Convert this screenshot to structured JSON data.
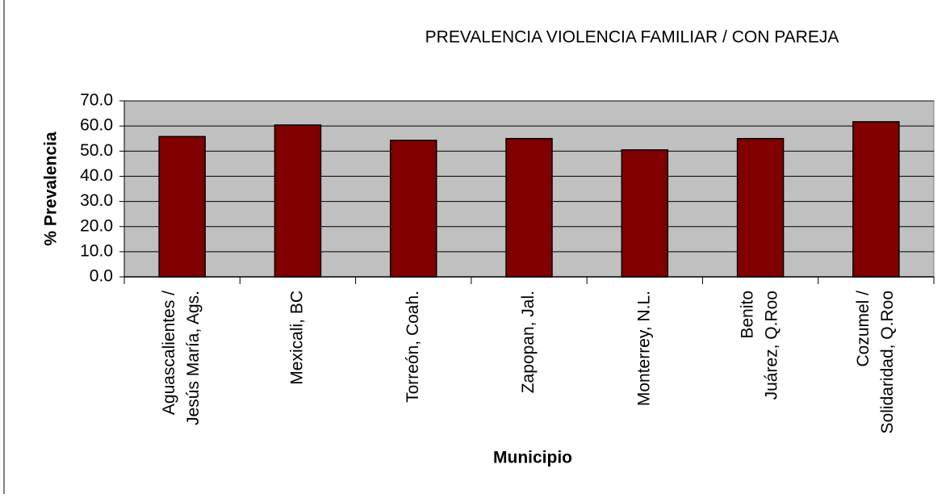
{
  "chart_data": {
    "type": "bar",
    "title": "PREVALENCIA VIOLENCIA FAMILIAR / CON PAREJA",
    "x_label": "Municipio",
    "y_label": "% Prevalencia",
    "categories": [
      [
        "Aguascalientes /",
        "Jesús María, Ags."
      ],
      [
        "Mexicali, BC"
      ],
      [
        "Torreón, Coah."
      ],
      [
        "Zapopan, Jal."
      ],
      [
        "Monterrey, N.L."
      ],
      [
        "Benito",
        "Juárez, Q.Roo"
      ],
      [
        "Cozumel /",
        "Solidaridad, Q.Roo"
      ]
    ],
    "values": [
      55.8,
      60.4,
      54.3,
      55.0,
      50.5,
      55.0,
      61.7
    ],
    "color": "#800000",
    "ylim": [
      0,
      70
    ],
    "yticks": [
      {
        "value": 0,
        "label": "0.0"
      },
      {
        "value": 10,
        "label": "10.0"
      },
      {
        "value": 20,
        "label": "20.0"
      },
      {
        "value": 30,
        "label": "30.0"
      },
      {
        "value": 40,
        "label": "40.0"
      },
      {
        "value": 50,
        "label": "50.0"
      },
      {
        "value": 60,
        "label": "60.0"
      },
      {
        "value": 70,
        "label": "70.0"
      }
    ],
    "grid": true
  }
}
